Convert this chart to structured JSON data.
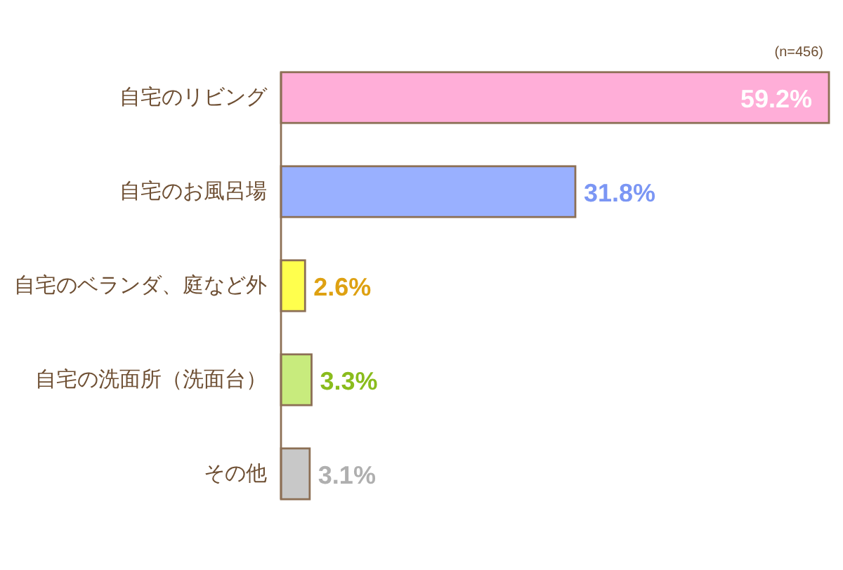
{
  "chart_data": {
    "type": "bar",
    "orientation": "horizontal",
    "categories": [
      "自宅のリビング",
      "自宅のお風呂場",
      "自宅のベランダ、庭など外",
      "自宅の洗面所（洗面台）",
      "その他"
    ],
    "values": [
      59.2,
      31.8,
      2.6,
      3.3,
      3.1
    ],
    "colors": [
      "#ffaed8",
      "#99b0ff",
      "#ffff4d",
      "#c8eb7d",
      "#c8c8c8"
    ],
    "value_labels": [
      "59.2%",
      "31.8%",
      "2.6%",
      "3.3%",
      "3.1%"
    ],
    "annotations": [
      "(n=456)"
    ]
  }
}
